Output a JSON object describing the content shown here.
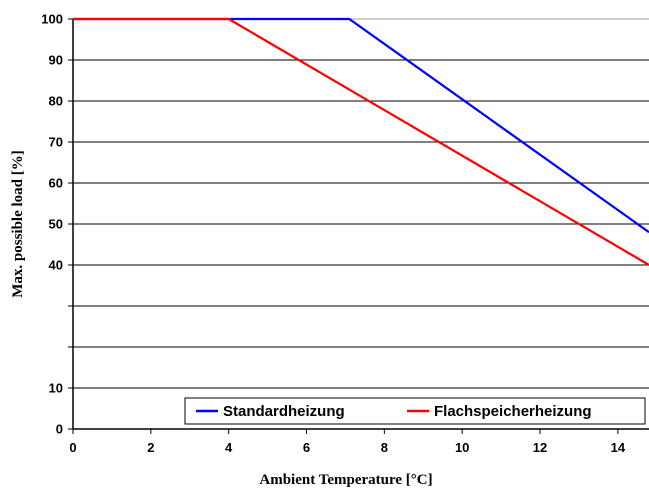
{
  "chart_data": {
    "type": "line",
    "xlabel": "Ambient Temperature [°C]",
    "ylabel": "Max. possible load [%]",
    "xlim": [
      0,
      14.8
    ],
    "ylim": [
      0,
      100
    ],
    "x_ticks": [
      0,
      2,
      4,
      6,
      8,
      10,
      12,
      14
    ],
    "gridlines_y": [
      0,
      10,
      20,
      30,
      40,
      50,
      60,
      70,
      80,
      90,
      100
    ],
    "y_tick_labels": [
      {
        "value": 0,
        "label": "0"
      },
      {
        "value": 10,
        "label": "10"
      },
      {
        "value": 40,
        "label": "40"
      },
      {
        "value": 50,
        "label": "50"
      },
      {
        "value": 60,
        "label": "60"
      },
      {
        "value": 70,
        "label": "70"
      },
      {
        "value": 80,
        "label": "80"
      },
      {
        "value": 90,
        "label": "90"
      },
      {
        "value": 100,
        "label": "100"
      }
    ],
    "grid": true,
    "legend_position": "bottom-right",
    "series": [
      {
        "name": "Standardheizung",
        "color": "#0000ff",
        "x": [
          0,
          7.1,
          14.8
        ],
        "y": [
          100,
          100,
          48
        ]
      },
      {
        "name": "Flachspeicherheizung",
        "color": "#ff0000",
        "x": [
          0,
          4.0,
          14.8
        ],
        "y": [
          100,
          100,
          40
        ]
      }
    ]
  }
}
